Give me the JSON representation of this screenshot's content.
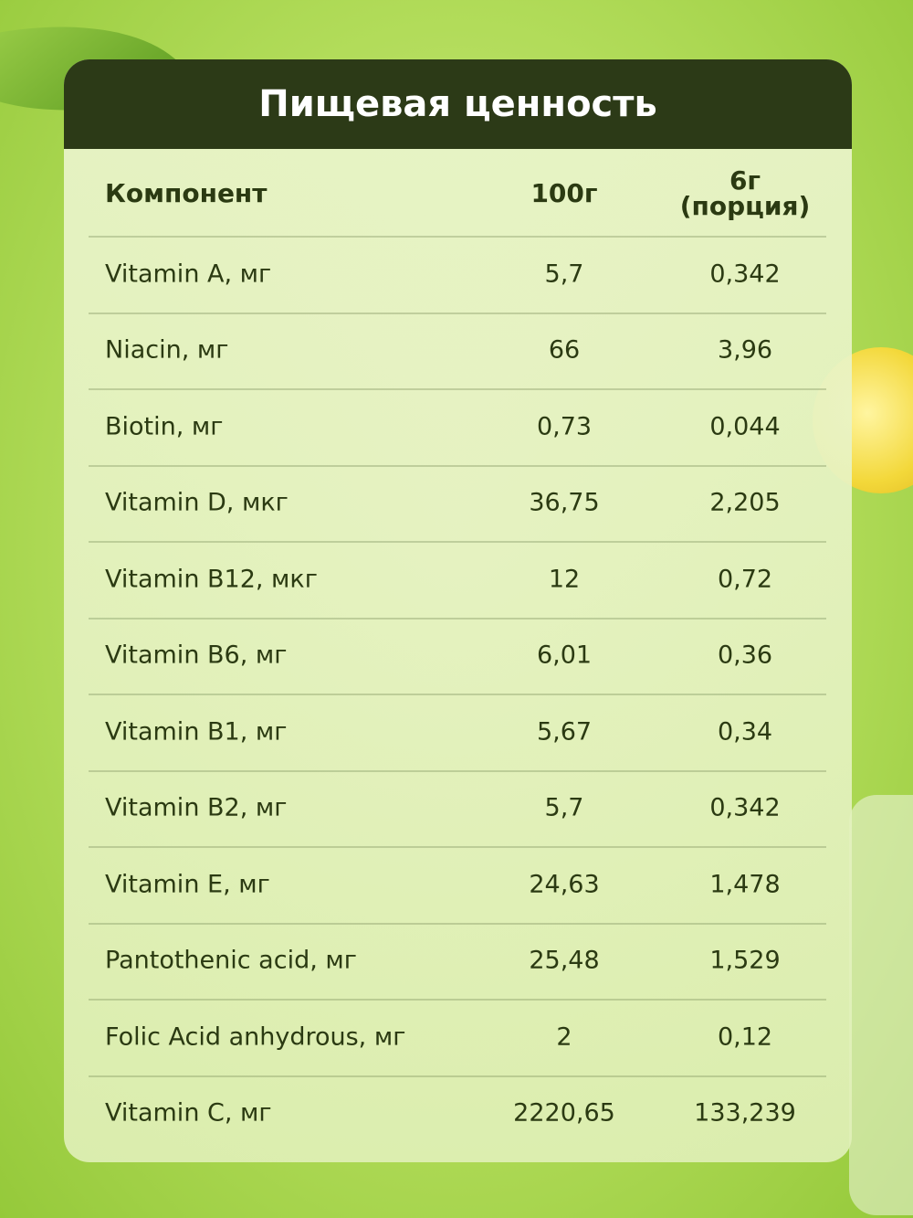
{
  "header": {
    "title": "Пищевая ценность"
  },
  "table": {
    "columns": [
      "Компонент",
      "100г",
      "6г (порция)"
    ],
    "rows": [
      [
        "Vitamin A, мг",
        "5,7",
        "0,342"
      ],
      [
        "Niacin, мг",
        "66",
        "3,96"
      ],
      [
        "Biotin, мг",
        "0,73",
        "0,044"
      ],
      [
        "Vitamin D, мкг",
        "36,75",
        "2,205"
      ],
      [
        "Vitamin B12, мкг",
        "12",
        "0,72"
      ],
      [
        "Vitamin B6, мг",
        "6,01",
        "0,36"
      ],
      [
        "Vitamin B1, мг",
        "5,67",
        "0,34"
      ],
      [
        "Vitamin B2, мг",
        "5,7",
        "0,342"
      ],
      [
        "Vitamin E, мг",
        "24,63",
        "1,478"
      ],
      [
        "Pantothenic acid, мг",
        "25,48",
        "1,529"
      ],
      [
        "Folic Acid anhydrous, мг",
        "2",
        "0,12"
      ],
      [
        "Vitamin C, мг",
        "2220,65",
        "133,239"
      ]
    ]
  }
}
